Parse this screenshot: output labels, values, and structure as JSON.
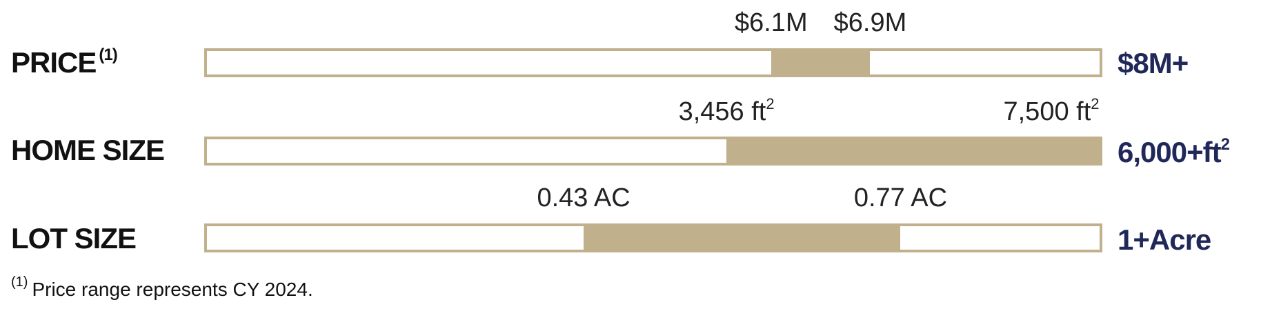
{
  "chart_data": {
    "type": "bar",
    "subtype": "range",
    "bar_color": "#c0b08c",
    "max_label_color": "#1f2858",
    "rows": [
      {
        "label": "PRICE",
        "label_note": "(1)",
        "range_low_label": "$6.1M",
        "range_high_label": "$6.9M",
        "range_low_fraction": 0.632,
        "range_high_fraction": 0.743,
        "max_label": "$8M+"
      },
      {
        "label": "HOME SIZE",
        "label_note": "",
        "range_low_label": "3,456 ft",
        "range_low_sup": "2",
        "range_high_label": "7,500 ft",
        "range_high_sup": "2",
        "range_low_fraction": 0.582,
        "range_high_fraction": 1.0,
        "max_label": "6,000+ft",
        "max_label_sup": "2"
      },
      {
        "label": "LOT SIZE",
        "label_note": "",
        "range_low_label": "0.43 AC",
        "range_high_label": "0.77 AC",
        "range_low_fraction": 0.422,
        "range_high_fraction": 0.777,
        "max_label": "1+Acre"
      }
    ]
  },
  "footnote": {
    "marker": "(1)",
    "text": "Price range represents CY 2024."
  }
}
